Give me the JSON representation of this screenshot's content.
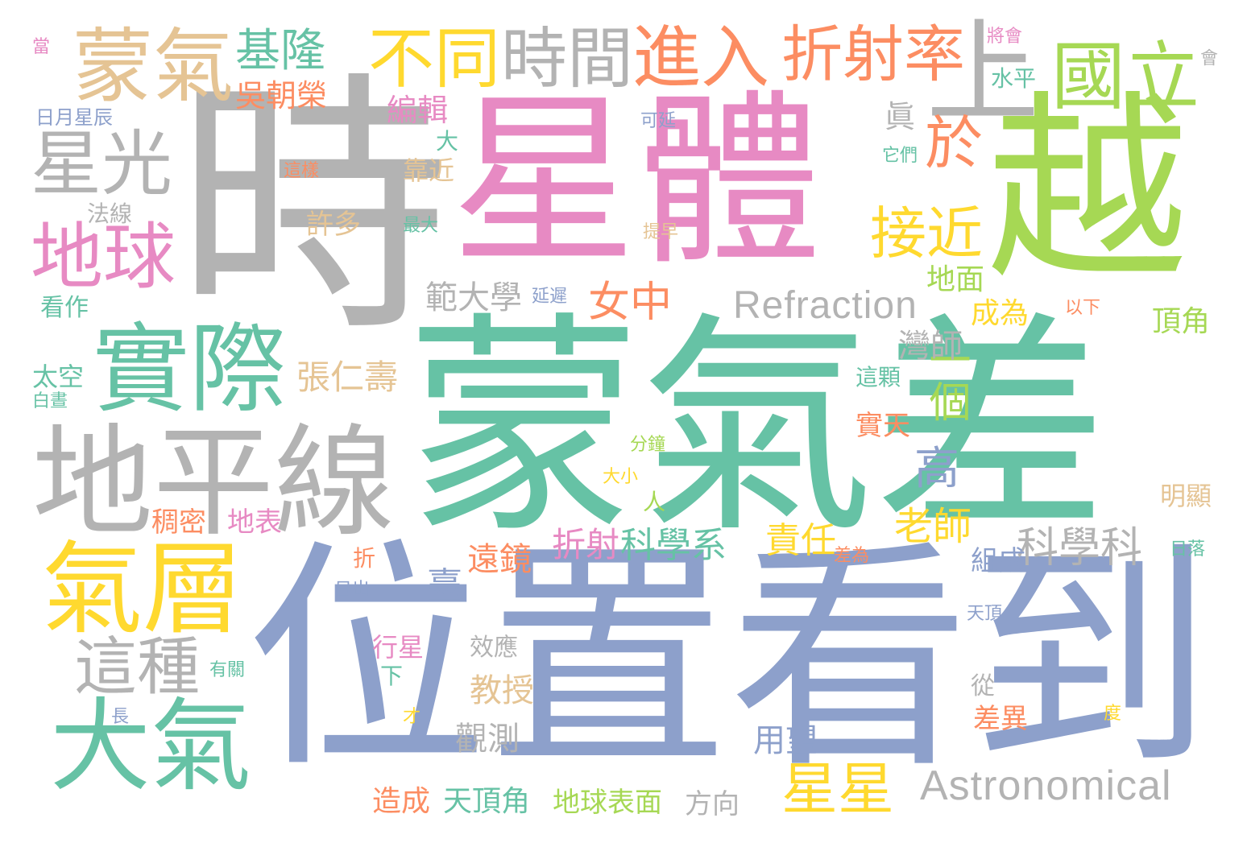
{
  "palette": {
    "teal": "#66c2a5",
    "periwinkle": "#8da0cb",
    "gray": "#b3b3b3",
    "pink": "#e78ac3",
    "lime": "#a6d854",
    "yellow": "#ffd92f",
    "tan": "#e5c494",
    "orange": "#fc8d62"
  },
  "words": [
    {
      "text": "時",
      "color": "gray"
    },
    {
      "text": "星體",
      "color": "pink"
    },
    {
      "text": "越",
      "color": "lime"
    },
    {
      "text": "蒙氣差",
      "color": "teal"
    },
    {
      "text": "位置看到",
      "color": "periwinkle"
    },
    {
      "text": "地平線",
      "color": "gray"
    },
    {
      "text": "實際",
      "color": "teal"
    },
    {
      "text": "氣層",
      "color": "yellow"
    },
    {
      "text": "大氣",
      "color": "teal"
    },
    {
      "text": "蒙氣",
      "color": "tan"
    },
    {
      "text": "基隆",
      "color": "teal"
    },
    {
      "text": "不同",
      "color": "yellow"
    },
    {
      "text": "時間",
      "color": "gray"
    },
    {
      "text": "進入",
      "color": "orange"
    },
    {
      "text": "折射率",
      "color": "orange"
    },
    {
      "text": "上",
      "color": "gray"
    },
    {
      "text": "國立",
      "color": "lime"
    },
    {
      "text": "星光",
      "color": "gray"
    },
    {
      "text": "地球",
      "color": "pink"
    },
    {
      "text": "於",
      "color": "orange"
    },
    {
      "text": "接近",
      "color": "yellow"
    },
    {
      "text": "Refraction",
      "color": "gray"
    },
    {
      "text": "Astronomical",
      "color": "gray"
    },
    {
      "text": "這種",
      "color": "gray"
    },
    {
      "text": "星星",
      "color": "yellow"
    },
    {
      "text": "一個",
      "color": "lime"
    },
    {
      "text": "高",
      "color": "periwinkle"
    },
    {
      "text": "女中",
      "color": "orange"
    },
    {
      "text": "科學科",
      "color": "gray"
    },
    {
      "text": "吳朝榮",
      "color": "orange"
    },
    {
      "text": "編輯",
      "color": "pink"
    },
    {
      "text": "範大學",
      "color": "gray"
    },
    {
      "text": "張仁壽",
      "color": "tan"
    },
    {
      "text": "灣師",
      "color": "gray"
    },
    {
      "text": "老師",
      "color": "yellow"
    },
    {
      "text": "責任",
      "color": "yellow"
    },
    {
      "text": "科學系",
      "color": "teal"
    },
    {
      "text": "折射",
      "color": "pink"
    },
    {
      "text": "遠鏡",
      "color": "orange"
    },
    {
      "text": "臺",
      "color": "periwinkle"
    },
    {
      "text": "教授",
      "color": "tan"
    },
    {
      "text": "觀測",
      "color": "gray"
    },
    {
      "text": "用望",
      "color": "periwinkle"
    },
    {
      "text": "造成",
      "color": "orange"
    },
    {
      "text": "天頂角",
      "color": "teal"
    },
    {
      "text": "地球表面",
      "color": "lime"
    },
    {
      "text": "方向",
      "color": "gray"
    },
    {
      "text": "水平",
      "color": "teal"
    },
    {
      "text": "將會",
      "color": "pink"
    },
    {
      "text": "會",
      "color": "gray"
    },
    {
      "text": "眞",
      "color": "gray"
    },
    {
      "text": "它們",
      "color": "teal"
    },
    {
      "text": "大",
      "color": "teal"
    },
    {
      "text": "靠近",
      "color": "tan"
    },
    {
      "text": "這樣",
      "color": "orange"
    },
    {
      "text": "許多",
      "color": "tan"
    },
    {
      "text": "最大",
      "color": "teal"
    },
    {
      "text": "提早",
      "color": "tan"
    },
    {
      "text": "可延",
      "color": "periwinkle"
    },
    {
      "text": "延遲",
      "color": "periwinkle"
    },
    {
      "text": "以下",
      "color": "orange"
    },
    {
      "text": "地面",
      "color": "lime"
    },
    {
      "text": "成為",
      "color": "yellow"
    },
    {
      "text": "頂角",
      "color": "lime"
    },
    {
      "text": "這顆",
      "color": "teal"
    },
    {
      "text": "實天",
      "color": "orange"
    },
    {
      "text": "分鐘",
      "color": "lime"
    },
    {
      "text": "大小",
      "color": "yellow"
    },
    {
      "text": "人",
      "color": "lime"
    },
    {
      "text": "明顯",
      "color": "tan"
    },
    {
      "text": "稠密",
      "color": "orange"
    },
    {
      "text": "地表",
      "color": "pink"
    },
    {
      "text": "折",
      "color": "orange"
    },
    {
      "text": "日出",
      "color": "periwinkle"
    },
    {
      "text": "差為",
      "color": "orange"
    },
    {
      "text": "組成",
      "color": "periwinkle"
    },
    {
      "text": "日落",
      "color": "teal"
    },
    {
      "text": "天頂",
      "color": "periwinkle"
    },
    {
      "text": "行星",
      "color": "pink"
    },
    {
      "text": "效應",
      "color": "gray"
    },
    {
      "text": "下",
      "color": "teal"
    },
    {
      "text": "有關",
      "color": "teal"
    },
    {
      "text": "從",
      "color": "gray"
    },
    {
      "text": "差異",
      "color": "orange"
    },
    {
      "text": "才",
      "color": "yellow"
    },
    {
      "text": "度",
      "color": "yellow"
    },
    {
      "text": "長",
      "color": "periwinkle"
    },
    {
      "text": "當",
      "color": "pink"
    },
    {
      "text": "日月星辰",
      "color": "periwinkle"
    },
    {
      "text": "法線",
      "color": "gray"
    },
    {
      "text": "看作",
      "color": "teal"
    },
    {
      "text": "太空",
      "color": "teal"
    },
    {
      "text": "白晝",
      "color": "teal"
    }
  ]
}
